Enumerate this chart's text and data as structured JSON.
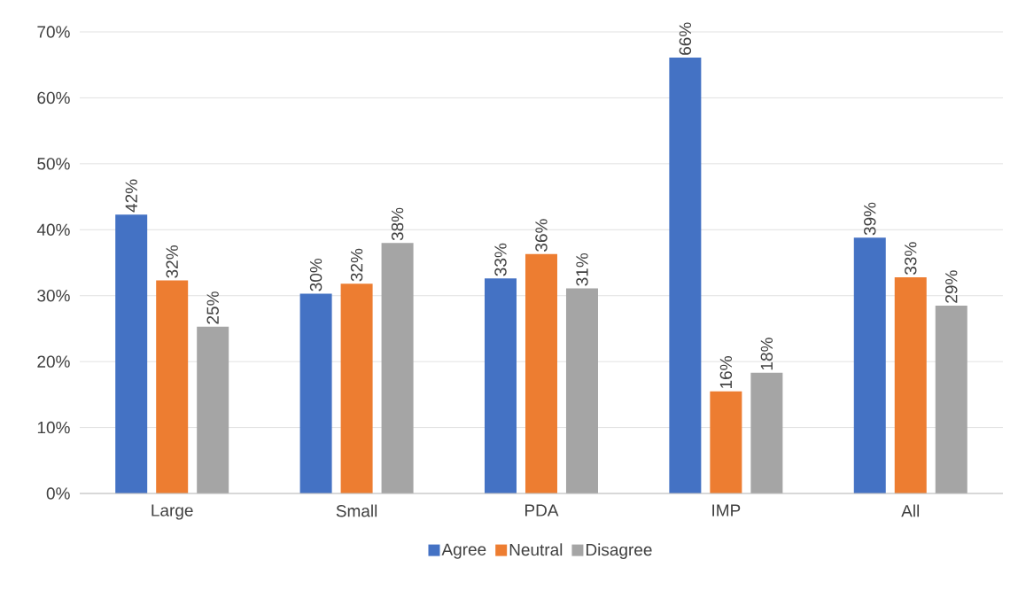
{
  "chart_data": {
    "type": "bar",
    "categories": [
      "Large",
      "Small",
      "PDA",
      "IMP",
      "All"
    ],
    "series": [
      {
        "name": "Agree",
        "color": "#4472c4",
        "values": [
          42.3,
          30.3,
          32.6,
          66.1,
          38.8
        ],
        "value_labels": [
          "42%",
          "30%",
          "33%",
          "66%",
          "39%"
        ]
      },
      {
        "name": "Neutral",
        "color": "#ed7d31",
        "values": [
          32.3,
          31.8,
          36.3,
          15.5,
          32.8
        ],
        "value_labels": [
          "32%",
          "32%",
          "36%",
          "16%",
          "33%"
        ]
      },
      {
        "name": "Disagree",
        "color": "#a5a5a5",
        "values": [
          25.3,
          38.0,
          31.1,
          18.3,
          28.5
        ],
        "value_labels": [
          "25%",
          "38%",
          "31%",
          "18%",
          "29%"
        ]
      }
    ],
    "ylim": [
      0,
      70
    ],
    "yticks": [
      {
        "value": 0,
        "label": "0%"
      },
      {
        "value": 10,
        "label": "10%"
      },
      {
        "value": 20,
        "label": "20%"
      },
      {
        "value": 30,
        "label": "30%"
      },
      {
        "value": 40,
        "label": "40%"
      },
      {
        "value": 50,
        "label": "50%"
      },
      {
        "value": 60,
        "label": "60%"
      },
      {
        "value": 70,
        "label": "70%"
      }
    ],
    "grid": "y",
    "legend": "bottom"
  }
}
